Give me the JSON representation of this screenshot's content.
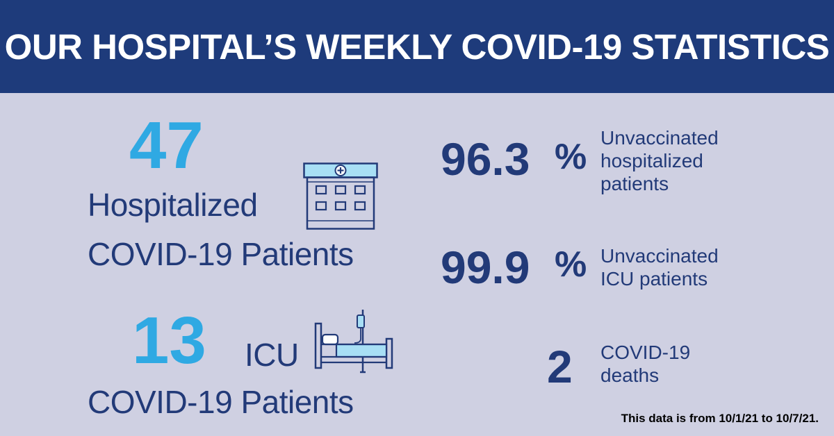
{
  "header": {
    "title": "OUR HOSPITAL’S WEEKLY COVID-19 STATISTICS"
  },
  "hospitalized": {
    "count": "47",
    "label_line1": "Hospitalized",
    "label_line2": "COVID-19 Patients"
  },
  "icu": {
    "count": "13",
    "prefix": "ICU",
    "label": "COVID-19 Patients"
  },
  "stats": [
    {
      "value": "96.3",
      "unit": "%",
      "label_line1": "Unvaccinated",
      "label_line2": "hospitalized",
      "label_line3": "patients"
    },
    {
      "value": "99.9",
      "unit": "%",
      "label_line1": "Unvaccinated",
      "label_line2": "ICU patients"
    },
    {
      "value": "2",
      "label_line1": "COVID-19",
      "label_line2": "deaths"
    }
  ],
  "footnote": "This data is from 10/1/21 to 10/7/21.",
  "colors": {
    "header_bg": "#1e3b7b",
    "page_bg": "#cfd0e2",
    "navy": "#223a78",
    "accent_blue": "#2fa9e3",
    "icon_fill": "#a8dff5"
  },
  "icons": [
    "hospital-building-icon",
    "icu-bed-icon"
  ]
}
